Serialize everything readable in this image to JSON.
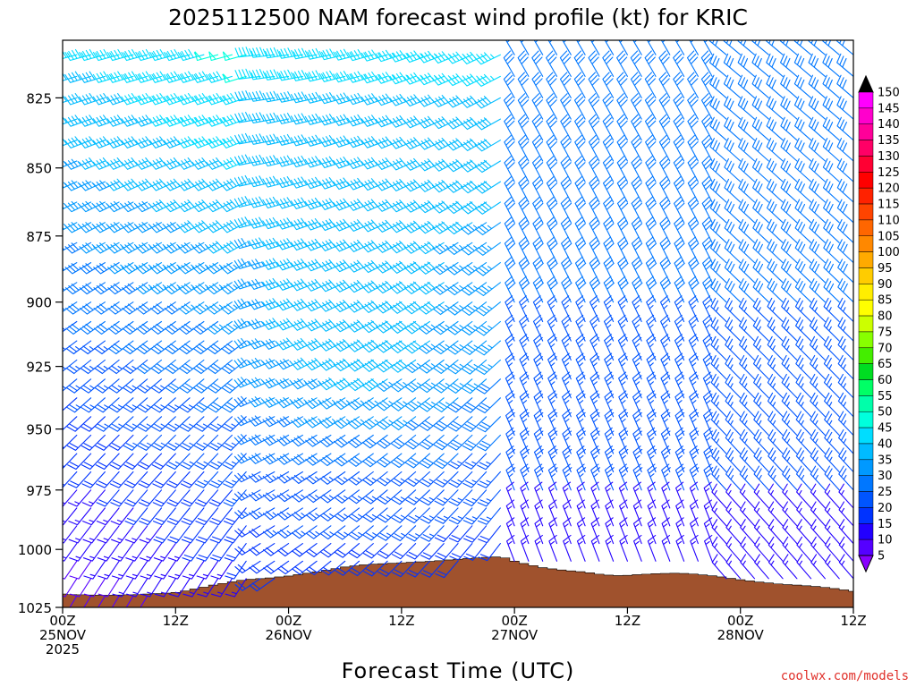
{
  "chart_data": {
    "type": "wind-barb-profile",
    "title": "2025112500 NAM forecast wind profile (kt) for KRIC",
    "xlabel": "Forecast Time (UTC)",
    "credit": "coolwx.com/models",
    "x_range_hours": [
      0,
      84
    ],
    "y_range_hpa": [
      805,
      1025
    ],
    "y_ticks": [
      "825",
      "850",
      "875",
      "900",
      "925",
      "950",
      "975",
      "1000",
      "1025"
    ],
    "x_ticks": [
      {
        "line1": "00Z",
        "line2": "25NOV",
        "line3": "2025"
      },
      {
        "line1": "12Z",
        "line2": "",
        "line3": ""
      },
      {
        "line1": "00Z",
        "line2": "26NOV",
        "line3": ""
      },
      {
        "line1": "12Z",
        "line2": "",
        "line3": ""
      },
      {
        "line1": "00Z",
        "line2": "27NOV",
        "line3": ""
      },
      {
        "line1": "12Z",
        "line2": "",
        "line3": ""
      },
      {
        "line1": "00Z",
        "line2": "28NOV",
        "line3": ""
      },
      {
        "line1": "12Z",
        "line2": "",
        "line3": ""
      }
    ],
    "colorbar": {
      "levels": [
        "150",
        "145",
        "140",
        "135",
        "130",
        "125",
        "120",
        "115",
        "110",
        "105",
        "100",
        "95",
        "90",
        "85",
        "80",
        "75",
        "70",
        "65",
        "60",
        "55",
        "50",
        "45",
        "40",
        "35",
        "30",
        "25",
        "20",
        "15",
        "10",
        "5"
      ],
      "colors": [
        "#ff00ff",
        "#ff00cc",
        "#ff0099",
        "#ff0066",
        "#ff0033",
        "#ff0000",
        "#ff2200",
        "#ff4400",
        "#ff6600",
        "#ff8800",
        "#ffaa00",
        "#ffcc00",
        "#ffee00",
        "#ffff00",
        "#ccff00",
        "#88ff00",
        "#44ee00",
        "#00dd22",
        "#00ff66",
        "#00ffaa",
        "#00ffdd",
        "#00ddff",
        "#00bbff",
        "#0099ff",
        "#0077ff",
        "#0055ff",
        "#0033ff",
        "#2200ff",
        "#5500ff",
        "#8800ff"
      ]
    },
    "surface_pressure": {
      "hours": [
        0,
        1,
        2,
        3,
        4,
        5,
        6,
        7,
        8,
        9,
        10,
        11,
        12,
        13,
        14,
        15,
        16,
        17,
        18,
        19,
        20,
        21,
        22,
        23,
        24,
        25,
        26,
        27,
        28,
        29,
        30,
        31,
        32,
        33,
        34,
        35,
        36,
        37,
        38,
        39,
        40,
        41,
        42,
        43,
        44,
        45,
        46,
        47,
        48,
        49,
        50,
        51,
        52,
        53,
        54,
        55,
        56,
        57,
        58,
        59,
        60,
        61,
        62,
        63,
        64,
        65,
        66,
        67,
        68,
        69,
        70,
        71,
        72,
        73,
        74,
        75,
        76,
        77,
        78,
        79,
        80,
        81,
        82,
        83,
        84
      ],
      "hpa": [
        1019.2,
        1019.4,
        1019.5,
        1019.6,
        1019.7,
        1019.7,
        1019.6,
        1019.5,
        1019.4,
        1019.2,
        1019.0,
        1018.8,
        1018.5,
        1017.8,
        1017.0,
        1016.2,
        1015.3,
        1014.6,
        1013.9,
        1013.2,
        1012.8,
        1012.5,
        1012.2,
        1011.8,
        1011.4,
        1010.8,
        1010.2,
        1009.6,
        1008.9,
        1008.2,
        1007.5,
        1007.0,
        1006.6,
        1006.3,
        1006.1,
        1005.9,
        1005.7,
        1005.5,
        1005.3,
        1005.1,
        1004.8,
        1004.5,
        1004.2,
        1003.9,
        1003.6,
        1003.4,
        1003.2,
        1003.6,
        1005.0,
        1006.0,
        1006.9,
        1007.8,
        1008.3,
        1008.8,
        1009.2,
        1009.5,
        1010.0,
        1010.6,
        1011.0,
        1011.2,
        1011.1,
        1010.8,
        1010.6,
        1010.4,
        1010.3,
        1010.2,
        1010.3,
        1010.5,
        1010.9,
        1011.3,
        1011.8,
        1012.4,
        1013.0,
        1013.5,
        1014.0,
        1014.4,
        1014.8,
        1015.1,
        1015.3,
        1015.6,
        1015.9,
        1016.3,
        1016.8,
        1017.4,
        1018.0
      ]
    }
  }
}
